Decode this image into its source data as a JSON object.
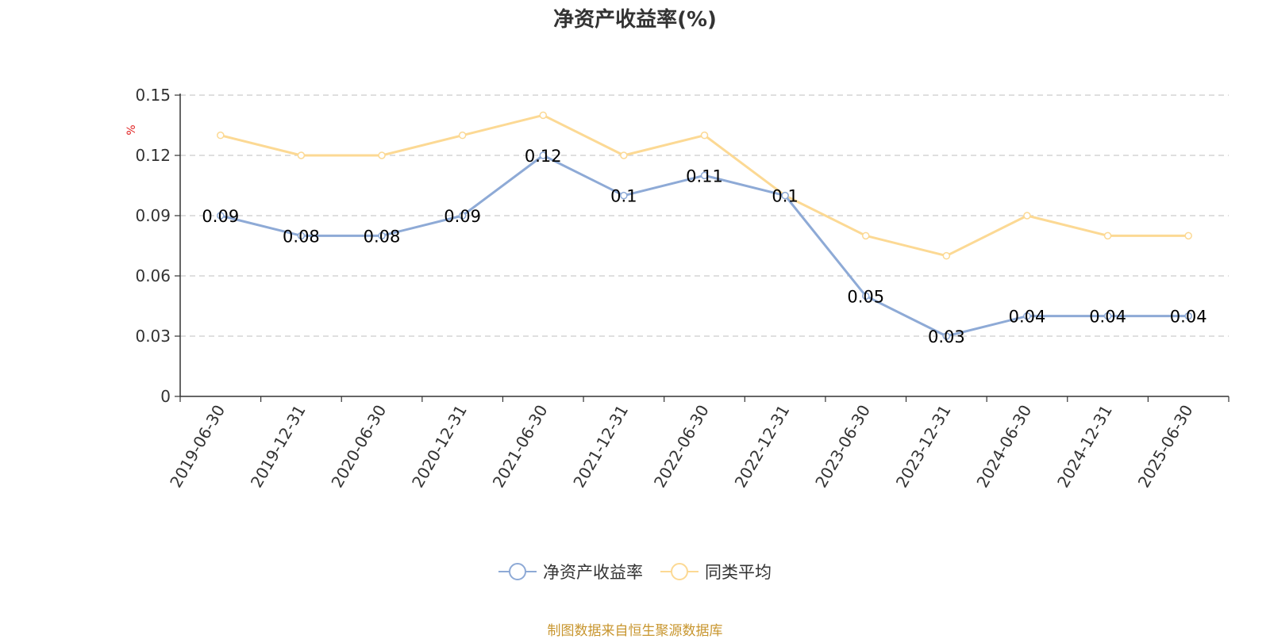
{
  "chart_data": {
    "type": "line",
    "title": "净资产收益率(%)",
    "ylabel": "%",
    "ylim": [
      0,
      0.15
    ],
    "yticks": [
      0,
      0.03,
      0.06,
      0.09,
      0.12,
      0.15
    ],
    "ytick_labels": [
      "0",
      "0.03",
      "0.06",
      "0.09",
      "0.12",
      "0.15"
    ],
    "grid": true,
    "legend_position": "bottom",
    "categories": [
      "2019-06-30",
      "2019-12-31",
      "2020-06-30",
      "2020-12-31",
      "2021-06-30",
      "2021-12-31",
      "2022-06-30",
      "2022-12-31",
      "2023-06-30",
      "2023-12-31",
      "2024-06-30",
      "2024-12-31",
      "2025-06-30"
    ],
    "series": [
      {
        "name": "净资产收益率",
        "color": "#8eaad6",
        "show_labels": true,
        "values": [
          0.09,
          0.08,
          0.08,
          0.09,
          0.12,
          0.1,
          0.11,
          0.1,
          0.05,
          0.03,
          0.04,
          0.04,
          0.04
        ],
        "labels": [
          "0.09",
          "0.08",
          "0.08",
          "0.09",
          "0.12",
          "0.1",
          "0.11",
          "0.1",
          "0.05",
          "0.03",
          "0.04",
          "0.04",
          "0.04"
        ]
      },
      {
        "name": "同类平均",
        "color": "#fcd994",
        "show_labels": false,
        "values": [
          0.13,
          0.12,
          0.12,
          0.13,
          0.14,
          0.12,
          0.13,
          0.1,
          0.08,
          0.07,
          0.09,
          0.08,
          0.08
        ]
      }
    ]
  },
  "source_note": "制图数据来自恒生聚源数据库",
  "colors": {
    "axis": "#333333",
    "grid": "#cccccc",
    "ylabel": "#e02020",
    "source": "#c8962f"
  }
}
